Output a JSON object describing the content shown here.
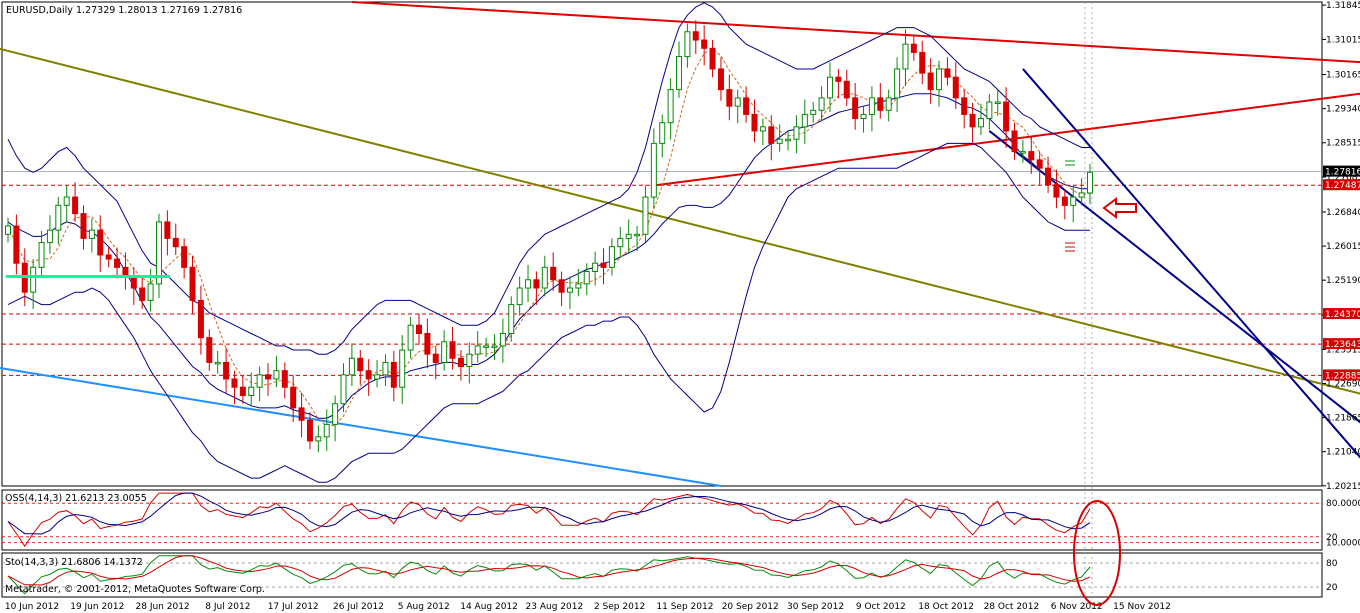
{
  "header": {
    "symbol": "EURUSD,Daily",
    "ohlc": "1.27329 1.28013 1.27169 1.27816"
  },
  "footer": {
    "copyright": "Metatrader, © 2001-2012, MetaQuotes Software Corp."
  },
  "indicators": {
    "osma": {
      "label": "OSS(4,14,3) 21.6213 23.0055",
      "levels": [
        80,
        20
      ],
      "level_labels": [
        "80.0000",
        "20",
        "10.0000"
      ]
    },
    "sto": {
      "label": "Sto(14,3,3) 21.6806 14.1372",
      "level_labels": [
        "80",
        "20"
      ]
    }
  },
  "colors": {
    "bull": "#0a8a0a",
    "bear": "#d60000",
    "bands": "#00008b",
    "ma": "#d2691e",
    "resistance": "#e00000",
    "olive": "#808000",
    "blue_line": "#1e90ff",
    "channel": "#00008b",
    "highlight": "#00ff99"
  },
  "chart_data": {
    "type": "candlestick",
    "title": "EURUSD,Daily",
    "ylim": [
      1.2021,
      1.3192
    ],
    "yticks": [
      1.31845,
      1.31015,
      1.30165,
      1.2934,
      1.28515,
      1.27685,
      1.2684,
      1.26015,
      1.2519,
      1.24345,
      1.23515,
      1.2269,
      1.21865,
      1.2104,
      1.20215
    ],
    "ytick_labels": [
      "1.31845",
      "1.31015",
      "1.30165",
      "1.29340",
      "1.28515",
      "1.27685",
      "1.26840",
      "1.26015",
      "1.25190",
      "1.24345",
      "1.23515",
      "1.22690",
      "1.21865",
      "1.21040",
      "1.20215"
    ],
    "price_tags": [
      {
        "label": "1.27816",
        "value": 1.27816,
        "color": "#000000"
      },
      {
        "label": "1.27487",
        "value": 1.27487,
        "color": "#d60000"
      },
      {
        "label": "1.24370",
        "value": 1.2437,
        "color": "#d60000"
      },
      {
        "label": "1.23643",
        "value": 1.23643,
        "color": "#d60000"
      },
      {
        "label": "1.22885",
        "value": 1.22885,
        "color": "#d60000"
      }
    ],
    "hlines_dashed": [
      1.27487,
      1.2437,
      1.23643,
      1.22885
    ],
    "x_labels": [
      "10 Jun 2012",
      "19 Jun 2012",
      "28 Jun 2012",
      "8 Jul 2012",
      "17 Jul 2012",
      "26 Jul 2012",
      "5 Aug 2012",
      "14 Aug 2012",
      "23 Aug 2012",
      "2 Sep 2012",
      "11 Sep 2012",
      "20 Sep 2012",
      "30 Sep 2012",
      "9 Oct 2012",
      "18 Oct 2012",
      "28 Oct 2012",
      "6 Nov 2012",
      "15 Nov 2012"
    ],
    "close": [
      1.265,
      1.256,
      1.249,
      1.255,
      1.261,
      1.264,
      1.27,
      1.272,
      1.268,
      1.262,
      1.264,
      1.258,
      1.257,
      1.255,
      1.253,
      1.25,
      1.247,
      1.251,
      1.266,
      1.262,
      1.26,
      1.255,
      1.247,
      1.238,
      1.232,
      1.232,
      1.228,
      1.226,
      1.224,
      1.226,
      1.229,
      1.228,
      1.23,
      1.226,
      1.221,
      1.218,
      1.213,
      1.214,
      1.217,
      1.222,
      1.229,
      1.233,
      1.23,
      1.228,
      1.229,
      1.232,
      1.226,
      1.235,
      1.241,
      1.239,
      1.234,
      1.232,
      1.237,
      1.233,
      1.231,
      1.234,
      1.236,
      1.236,
      1.236,
      1.239,
      1.246,
      1.25,
      1.252,
      1.25,
      1.255,
      1.252,
      1.249,
      1.25,
      1.251,
      1.254,
      1.256,
      1.255,
      1.26,
      1.262,
      1.263,
      1.263,
      1.272,
      1.285,
      1.29,
      1.298,
      1.306,
      1.312,
      1.31,
      1.308,
      1.303,
      1.298,
      1.294,
      1.296,
      1.292,
      1.288,
      1.289,
      1.285,
      1.286,
      1.286,
      1.289,
      1.292,
      1.293,
      1.296,
      1.301,
      1.3,
      1.296,
      1.291,
      1.292,
      1.296,
      1.293,
      1.296,
      1.303,
      1.309,
      1.307,
      1.302,
      1.298,
      1.303,
      1.301,
      1.296,
      1.292,
      1.289,
      1.291,
      1.295,
      1.295,
      1.288,
      1.283,
      1.283,
      1.281,
      1.279,
      1.275,
      1.272,
      1.27,
      1.272,
      1.273,
      1.278
    ],
    "bands_upper": [
      1.286,
      1.282,
      1.279,
      1.278,
      1.279,
      1.281,
      1.283,
      1.284,
      1.282,
      1.279,
      1.277,
      1.275,
      1.273,
      1.271,
      1.267,
      1.263,
      1.259,
      1.256,
      1.255,
      1.253,
      1.251,
      1.249,
      1.247,
      1.246,
      1.244,
      1.243,
      1.242,
      1.241,
      1.24,
      1.239,
      1.238,
      1.237,
      1.236,
      1.236,
      1.235,
      1.235,
      1.235,
      1.234,
      1.234,
      1.235,
      1.237,
      1.24,
      1.242,
      1.244,
      1.246,
      1.247,
      1.247,
      1.247,
      1.247,
      1.246,
      1.245,
      1.244,
      1.243,
      1.242,
      1.241,
      1.241,
      1.241,
      1.242,
      1.244,
      1.248,
      1.252,
      1.256,
      1.259,
      1.261,
      1.263,
      1.264,
      1.265,
      1.266,
      1.267,
      1.268,
      1.269,
      1.27,
      1.271,
      1.272,
      1.274,
      1.278,
      1.284,
      1.292,
      1.3,
      1.307,
      1.313,
      1.316,
      1.318,
      1.319,
      1.318,
      1.316,
      1.313,
      1.311,
      1.309,
      1.308,
      1.307,
      1.306,
      1.305,
      1.304,
      1.303,
      1.303,
      1.303,
      1.304,
      1.305,
      1.306,
      1.307,
      1.308,
      1.309,
      1.31,
      1.311,
      1.312,
      1.313,
      1.313,
      1.313,
      1.312,
      1.311,
      1.309,
      1.307,
      1.305,
      1.303,
      1.302,
      1.301,
      1.3,
      1.298,
      1.296,
      1.294,
      1.292,
      1.291,
      1.289,
      1.288,
      1.287,
      1.286,
      1.285,
      1.284,
      1.284
    ],
    "bands_lower": [
      1.246,
      1.247,
      1.248,
      1.247,
      1.246,
      1.246,
      1.247,
      1.248,
      1.249,
      1.249,
      1.25,
      1.249,
      1.247,
      1.244,
      1.241,
      1.238,
      1.234,
      1.23,
      1.227,
      1.224,
      1.221,
      1.218,
      1.215,
      1.213,
      1.21,
      1.208,
      1.207,
      1.206,
      1.205,
      1.204,
      1.204,
      1.205,
      1.206,
      1.207,
      1.206,
      1.205,
      1.204,
      1.203,
      1.203,
      1.204,
      1.206,
      1.208,
      1.209,
      1.21,
      1.21,
      1.21,
      1.21,
      1.211,
      1.213,
      1.215,
      1.217,
      1.219,
      1.221,
      1.222,
      1.222,
      1.222,
      1.222,
      1.223,
      1.224,
      1.225,
      1.227,
      1.229,
      1.23,
      1.232,
      1.234,
      1.236,
      1.238,
      1.239,
      1.24,
      1.241,
      1.241,
      1.242,
      1.242,
      1.243,
      1.243,
      1.241,
      1.238,
      1.234,
      1.231,
      1.228,
      1.226,
      1.224,
      1.222,
      1.22,
      1.221,
      1.225,
      1.232,
      1.24,
      1.248,
      1.255,
      1.26,
      1.264,
      1.268,
      1.272,
      1.274,
      1.275,
      1.276,
      1.277,
      1.278,
      1.279,
      1.279,
      1.279,
      1.279,
      1.279,
      1.279,
      1.279,
      1.279,
      1.28,
      1.281,
      1.282,
      1.283,
      1.284,
      1.285,
      1.285,
      1.285,
      1.285,
      1.284,
      1.282,
      1.28,
      1.278,
      1.275,
      1.272,
      1.27,
      1.268,
      1.266,
      1.265,
      1.264,
      1.264,
      1.264,
      1.264
    ]
  }
}
